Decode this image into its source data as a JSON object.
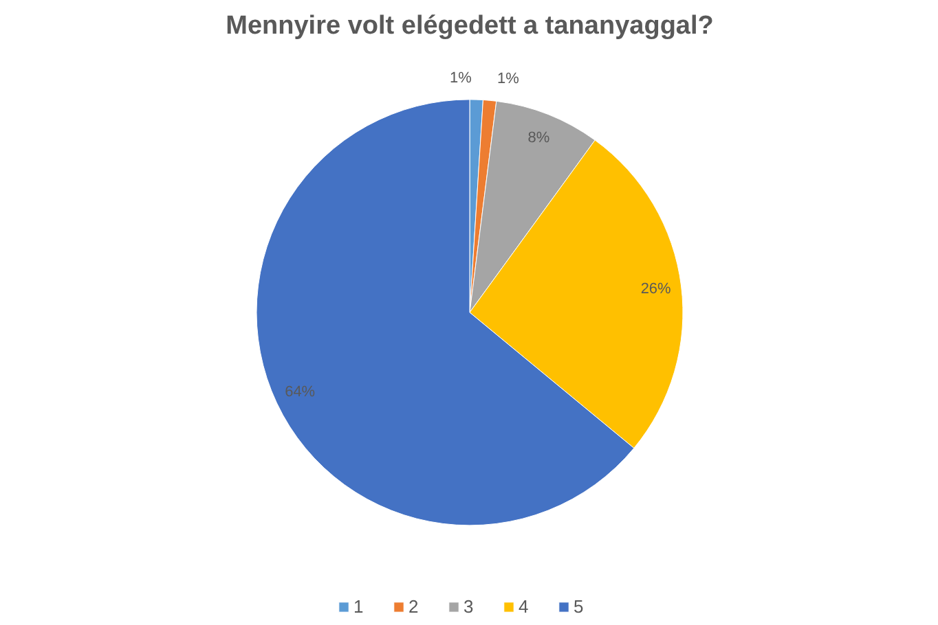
{
  "chart_data": {
    "type": "pie",
    "title": "Mennyire volt elégedett a tananyaggal?",
    "categories": [
      "1",
      "2",
      "3",
      "4",
      "5"
    ],
    "values": [
      1,
      1,
      8,
      26,
      64
    ],
    "colors": [
      "#5b9bd5",
      "#ed7d31",
      "#a5a5a5",
      "#ffc000",
      "#4472c4"
    ],
    "value_labels": [
      "1%",
      "1%",
      "8%",
      "26%",
      "64%"
    ],
    "legend": "bottom"
  }
}
